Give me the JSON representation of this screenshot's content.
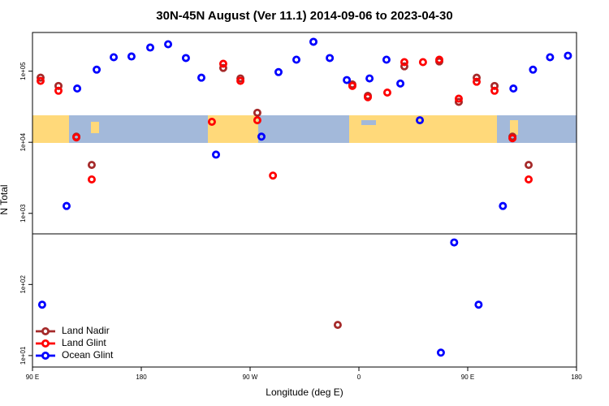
{
  "chart_data": {
    "type": "scatter",
    "title": "30N-45N August (Ver 11.1)   2014-09-06 to 2023-04-30",
    "x_label": "Longitude (deg E)",
    "y_label": "N Total",
    "log_y": true,
    "legend": "bottom-left",
    "xlim": [
      90,
      540
    ],
    "xticks": [
      {
        "value": 90,
        "label": "90 E"
      },
      180,
      {
        "value": 270,
        "label": "90 W"
      },
      {
        "value": 360,
        "label": "0"
      },
      {
        "value": 450,
        "label": "90 E"
      },
      {
        "value": 540,
        "label": "180"
      }
    ],
    "ylim": [
      6.9,
      350000
    ],
    "yticks": [
      {
        "value": 10,
        "label": "1e+01"
      },
      {
        "value": 100,
        "label": "1e+02"
      },
      {
        "value": 1000,
        "label": "1e+03"
      },
      {
        "value": 10000,
        "label": "1e+04"
      },
      {
        "value": 100000,
        "label": "1e+05"
      }
    ],
    "series": [
      {
        "name": "Land Nadir",
        "color": "#a52a2a",
        "x": [
          96.7,
          111.5,
          126.3,
          139,
          247.8,
          262,
          276,
          342.5,
          354.6,
          367.4,
          397.6,
          426.5,
          442.6,
          457.4,
          472.2,
          487,
          500.4
        ],
        "values": [
          81000,
          62000,
          12000,
          4800,
          111000,
          79000,
          26000,
          27,
          65000,
          45000,
          117000,
          137000,
          37000,
          81000,
          62000,
          12000,
          4800
        ]
      },
      {
        "name": "Land Glint",
        "color": "#ff0000",
        "x": [
          96.7,
          111.5,
          126.3,
          139,
          238.4,
          247.8,
          262,
          276,
          288.9,
          354.6,
          367.4,
          383.5,
          397.6,
          413,
          426.5,
          442.6,
          457.4,
          472.2,
          487,
          500.4
        ],
        "values": [
          73000,
          53000,
          11700,
          3000,
          19400,
          127000,
          73000,
          20400,
          3400,
          62000,
          43000,
          50000,
          134000,
          134000,
          145000,
          41000,
          71000,
          53000,
          11400,
          3000
        ]
      },
      {
        "name": "Ocean Glint",
        "color": "#0000ff",
        "x": [
          98,
          118.2,
          127,
          143.1,
          157.2,
          171.9,
          187.4,
          202.2,
          216.9,
          229.7,
          241.8,
          279.4,
          293.5,
          308.3,
          322.4,
          335.9,
          350,
          368.8,
          382.8,
          394.3,
          410.4,
          427.8,
          438.8,
          459,
          479.1,
          487.8,
          504,
          518.1,
          532.9
        ],
        "values": [
          52,
          1270,
          57000,
          105000,
          157000,
          161000,
          215000,
          239000,
          153000,
          81000,
          6700,
          12000,
          97000,
          145000,
          259000,
          153000,
          75000,
          79000,
          145000,
          67000,
          20400,
          11,
          390,
          52,
          1270,
          57000,
          105000,
          157000,
          165000
        ]
      }
    ]
  }
}
